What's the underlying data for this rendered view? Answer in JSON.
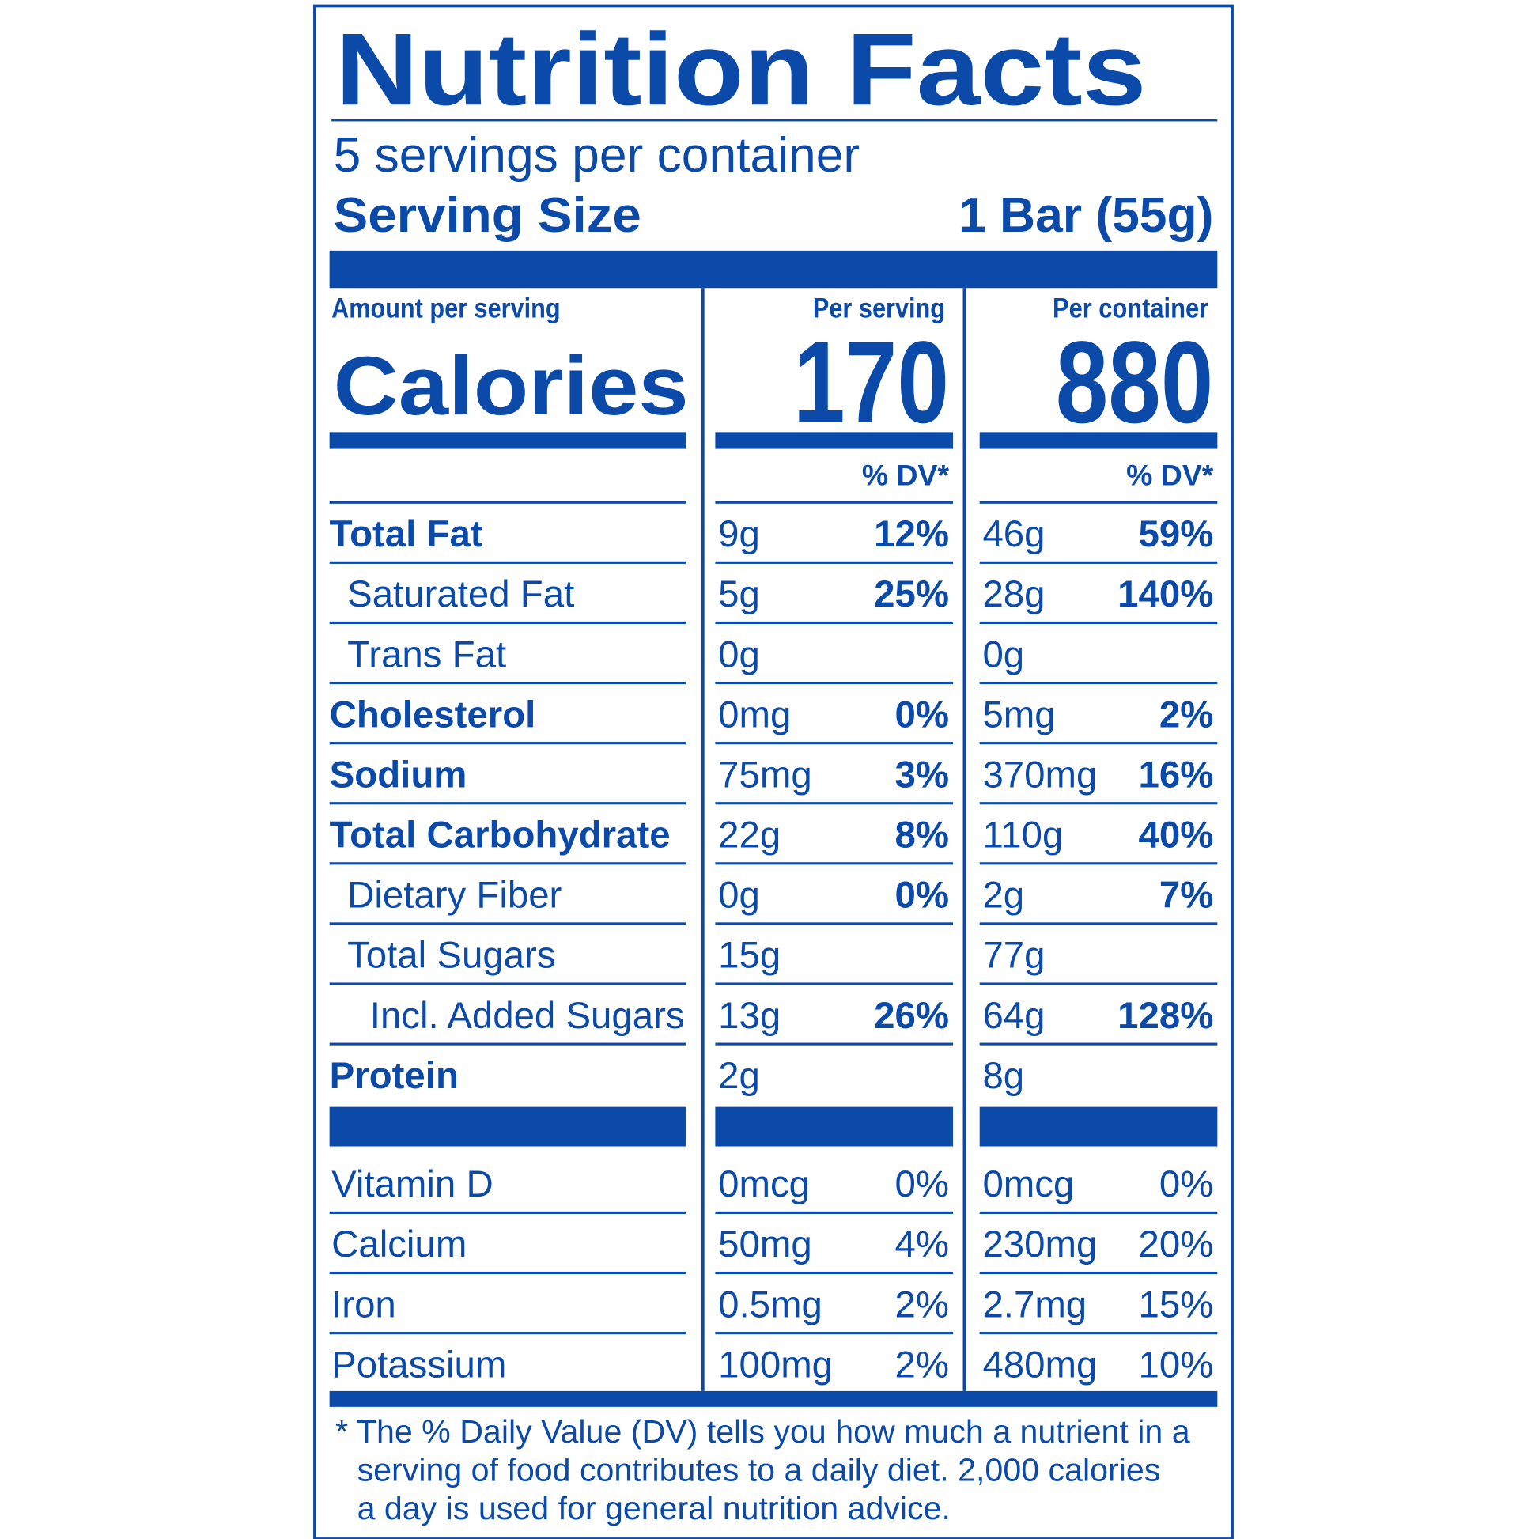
{
  "header": {
    "title": "Nutrition Facts",
    "servings": "5 servings per container",
    "serving_size_label": "Serving Size",
    "serving_size_value": "1 Bar (55g)"
  },
  "calories": {
    "amount_label": "Amount per serving",
    "label": "Calories",
    "per_serving_header": "Per serving",
    "per_serving": "170",
    "per_container_header": "Per container",
    "per_container": "880"
  },
  "dv_header": [
    "% DV*",
    "% DV*"
  ],
  "nutrients": [
    {
      "name": "Total Fat",
      "bold": true,
      "indent": 0,
      "serving_amount": "9g",
      "serving_dv": "12%",
      "container_amount": "46g",
      "container_dv": "59%"
    },
    {
      "name": "Saturated Fat",
      "bold": false,
      "indent": 1,
      "serving_amount": "5g",
      "serving_dv": "25%",
      "container_amount": "28g",
      "container_dv": "140%"
    },
    {
      "name": "Trans Fat",
      "bold": false,
      "indent": 1,
      "serving_amount": "0g",
      "serving_dv": null,
      "container_amount": "0g",
      "container_dv": null
    },
    {
      "name": "Cholesterol",
      "bold": true,
      "indent": 0,
      "serving_amount": "0mg",
      "serving_dv": "0%",
      "container_amount": "5mg",
      "container_dv": "2%"
    },
    {
      "name": "Sodium",
      "bold": true,
      "indent": 0,
      "serving_amount": "75mg",
      "serving_dv": "3%",
      "container_amount": "370mg",
      "container_dv": "16%"
    },
    {
      "name": "Total Carbohydrate",
      "bold": true,
      "indent": 0,
      "serving_amount": "22g",
      "serving_dv": "8%",
      "container_amount": "110g",
      "container_dv": "40%"
    },
    {
      "name": "Dietary Fiber",
      "bold": false,
      "indent": 1,
      "serving_amount": "0g",
      "serving_dv": "0%",
      "container_amount": "2g",
      "container_dv": "7%"
    },
    {
      "name": "Total Sugars",
      "bold": false,
      "indent": 1,
      "serving_amount": "15g",
      "serving_dv": null,
      "container_amount": "77g",
      "container_dv": null
    },
    {
      "name": "Incl. Added Sugars",
      "bold": false,
      "indent": 2,
      "serving_amount": "13g",
      "serving_dv": "26%",
      "container_amount": "64g",
      "container_dv": "128%"
    },
    {
      "name": "Protein",
      "bold": true,
      "indent": 0,
      "serving_amount": "2g",
      "serving_dv": null,
      "container_amount": "8g",
      "container_dv": null
    }
  ],
  "vitamins": [
    {
      "name": "Vitamin D",
      "serving_amount": "0mcg",
      "serving_dv": "0%",
      "container_amount": "0mcg",
      "container_dv": "0%"
    },
    {
      "name": "Calcium",
      "serving_amount": "50mg",
      "serving_dv": "4%",
      "container_amount": "230mg",
      "container_dv": "20%"
    },
    {
      "name": "Iron",
      "serving_amount": "0.5mg",
      "serving_dv": "2%",
      "container_amount": "2.7mg",
      "container_dv": "15%"
    },
    {
      "name": "Potassium",
      "serving_amount": "100mg",
      "serving_dv": "2%",
      "container_amount": "480mg",
      "container_dv": "10%"
    }
  ],
  "footnote": [
    "* The % Daily Value (DV) tells you how much a nutrient in a",
    "serving of food contributes to a daily diet. 2,000 calories",
    "a day is used for general nutrition advice."
  ]
}
